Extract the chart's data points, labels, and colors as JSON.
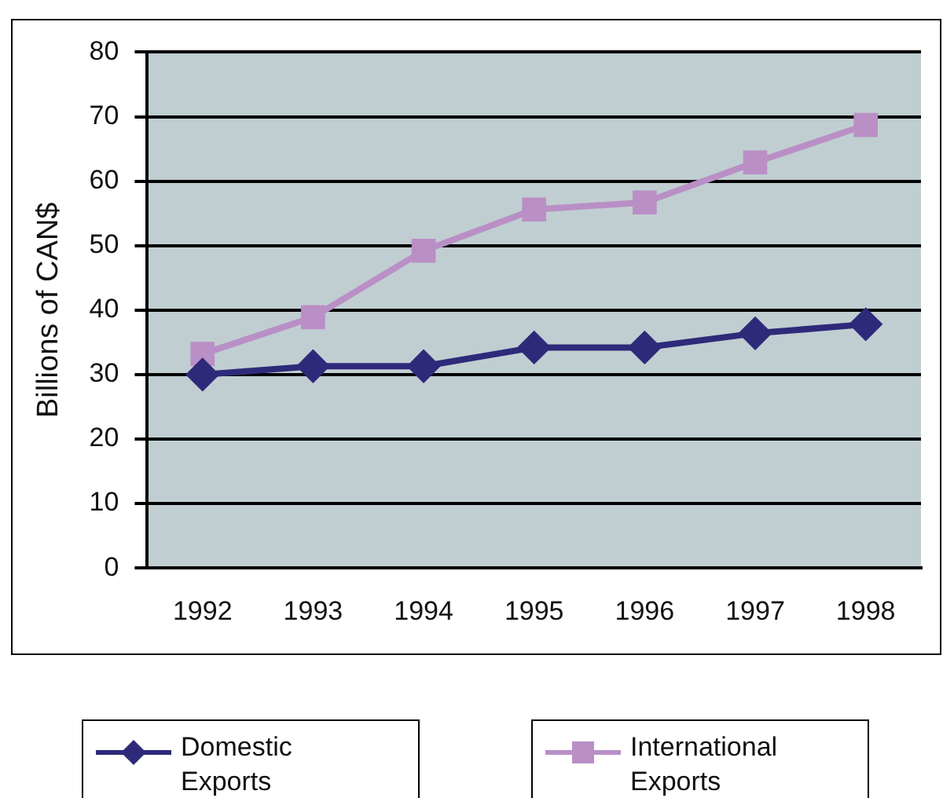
{
  "chart_data": {
    "type": "line",
    "ylabel": "Billions of CAN$",
    "categories": [
      "1992",
      "1993",
      "1994",
      "1995",
      "1996",
      "1997",
      "1998"
    ],
    "series": [
      {
        "name": "Domestic Exports",
        "color": "#2e2a7a",
        "marker": "diamond",
        "values": [
          30,
          31.3,
          31.3,
          34.2,
          34.2,
          36.4,
          37.8
        ]
      },
      {
        "name": "International Exports",
        "color": "#b98fc6",
        "marker": "square",
        "values": [
          33.2,
          38.9,
          49.2,
          55.6,
          56.7,
          62.9,
          68.7
        ]
      }
    ],
    "ylim": [
      0,
      80
    ],
    "yticks": [
      0,
      10,
      20,
      30,
      40,
      50,
      60,
      70,
      80
    ],
    "grid": "y",
    "legend": "bottom"
  }
}
